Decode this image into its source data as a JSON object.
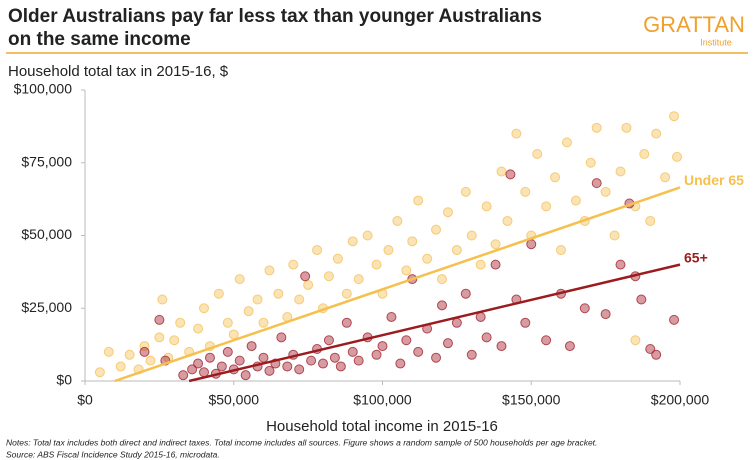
{
  "logo": {
    "name": "GRATTAN",
    "sub": "Institute"
  },
  "chart_data": {
    "type": "scatter",
    "title": [
      "Older Australians pay far less tax than younger Australians",
      "on the same income"
    ],
    "y_label": "Household total tax in 2015-16, $",
    "x_label": "Household total income in 2015-16",
    "notes": [
      "Notes: Total tax includes both direct and indirect taxes. Total income includes all sources. Figure shows a random sample of 500 households per age bracket.",
      "Source: ABS Fiscal Incidence Study 2015-16, microdata."
    ],
    "xlim": [
      0,
      200000
    ],
    "ylim": [
      0,
      100000
    ],
    "xticks": [
      {
        "value": 0,
        "label": "$0"
      },
      {
        "value": 50000,
        "label": "$50,000"
      },
      {
        "value": 100000,
        "label": "$100,000"
      },
      {
        "value": 150000,
        "label": "$150,000"
      },
      {
        "value": 200000,
        "label": "$200,000"
      }
    ],
    "yticks": [
      {
        "value": 0,
        "label": "$0"
      },
      {
        "value": 25000,
        "label": "$25,000"
      },
      {
        "value": 50000,
        "label": "$50,000"
      },
      {
        "value": 75000,
        "label": "$75,000"
      },
      {
        "value": 100000,
        "label": "$100,000"
      }
    ],
    "grid": false,
    "series": [
      {
        "name": "Under 65",
        "color": "#f5c25c",
        "x": [
          5000,
          8000,
          12000,
          15000,
          18000,
          20000,
          22000,
          25000,
          26000,
          28000,
          30000,
          32000,
          35000,
          38000,
          40000,
          42000,
          45000,
          48000,
          50000,
          52000,
          55000,
          58000,
          60000,
          62000,
          65000,
          68000,
          70000,
          72000,
          75000,
          78000,
          80000,
          82000,
          85000,
          88000,
          90000,
          92000,
          95000,
          98000,
          100000,
          102000,
          105000,
          108000,
          110000,
          112000,
          115000,
          118000,
          120000,
          122000,
          125000,
          128000,
          130000,
          133000,
          135000,
          138000,
          140000,
          142000,
          145000,
          148000,
          150000,
          152000,
          155000,
          158000,
          160000,
          162000,
          165000,
          168000,
          170000,
          172000,
          175000,
          178000,
          180000,
          182000,
          185000,
          188000,
          190000,
          192000,
          195000,
          198000,
          199000,
          185000
        ],
        "values": [
          3000,
          10000,
          5000,
          9000,
          4000,
          12000,
          7000,
          15000,
          28000,
          8000,
          14000,
          20000,
          10000,
          18000,
          25000,
          12000,
          30000,
          20000,
          16000,
          35000,
          24000,
          28000,
          20000,
          38000,
          30000,
          22000,
          40000,
          28000,
          33000,
          45000,
          25000,
          36000,
          42000,
          30000,
          48000,
          35000,
          50000,
          40000,
          30000,
          45000,
          55000,
          38000,
          48000,
          62000,
          42000,
          52000,
          35000,
          58000,
          45000,
          65000,
          50000,
          40000,
          60000,
          47000,
          72000,
          55000,
          85000,
          65000,
          50000,
          78000,
          60000,
          70000,
          45000,
          82000,
          62000,
          55000,
          75000,
          87000,
          65000,
          50000,
          72000,
          87000,
          60000,
          78000,
          55000,
          85000,
          70000,
          91000,
          77000,
          14000
        ]
      },
      {
        "name": "65+",
        "color": "#a32430",
        "x": [
          20000,
          25000,
          27000,
          33000,
          36000,
          38000,
          40000,
          42000,
          44000,
          46000,
          48000,
          50000,
          52000,
          54000,
          56000,
          58000,
          60000,
          62000,
          64000,
          66000,
          68000,
          70000,
          72000,
          74000,
          76000,
          78000,
          80000,
          82000,
          84000,
          86000,
          88000,
          90000,
          92000,
          95000,
          98000,
          100000,
          103000,
          106000,
          108000,
          110000,
          112000,
          115000,
          118000,
          120000,
          122000,
          125000,
          128000,
          130000,
          133000,
          135000,
          138000,
          140000,
          143000,
          145000,
          148000,
          150000,
          155000,
          160000,
          163000,
          168000,
          172000,
          175000,
          180000,
          183000,
          185000,
          187000,
          190000,
          192000,
          198000
        ],
        "values": [
          10000,
          21000,
          7000,
          2000,
          4000,
          6000,
          3000,
          8000,
          2500,
          5000,
          10000,
          4000,
          7000,
          2000,
          12000,
          5000,
          8000,
          3500,
          6000,
          15000,
          5000,
          9000,
          4000,
          36000,
          7000,
          11000,
          6000,
          14000,
          8000,
          5000,
          20000,
          10000,
          7000,
          15000,
          9000,
          12000,
          22000,
          6000,
          14000,
          35000,
          10000,
          18000,
          8000,
          26000,
          13000,
          20000,
          30000,
          9000,
          22000,
          15000,
          40000,
          12000,
          71000,
          28000,
          20000,
          47000,
          14000,
          30000,
          12000,
          25000,
          68000,
          23000,
          40000,
          61000,
          36000,
          28000,
          11000,
          9000,
          21000
        ]
      }
    ],
    "trend_lines": [
      {
        "color": "#f5c04e",
        "x": [
          10000,
          200000
        ],
        "values": [
          0,
          66500
        ]
      },
      {
        "color": "#9b1b1e",
        "x": [
          35000,
          200000
        ],
        "values": [
          0,
          40000
        ]
      }
    ]
  }
}
